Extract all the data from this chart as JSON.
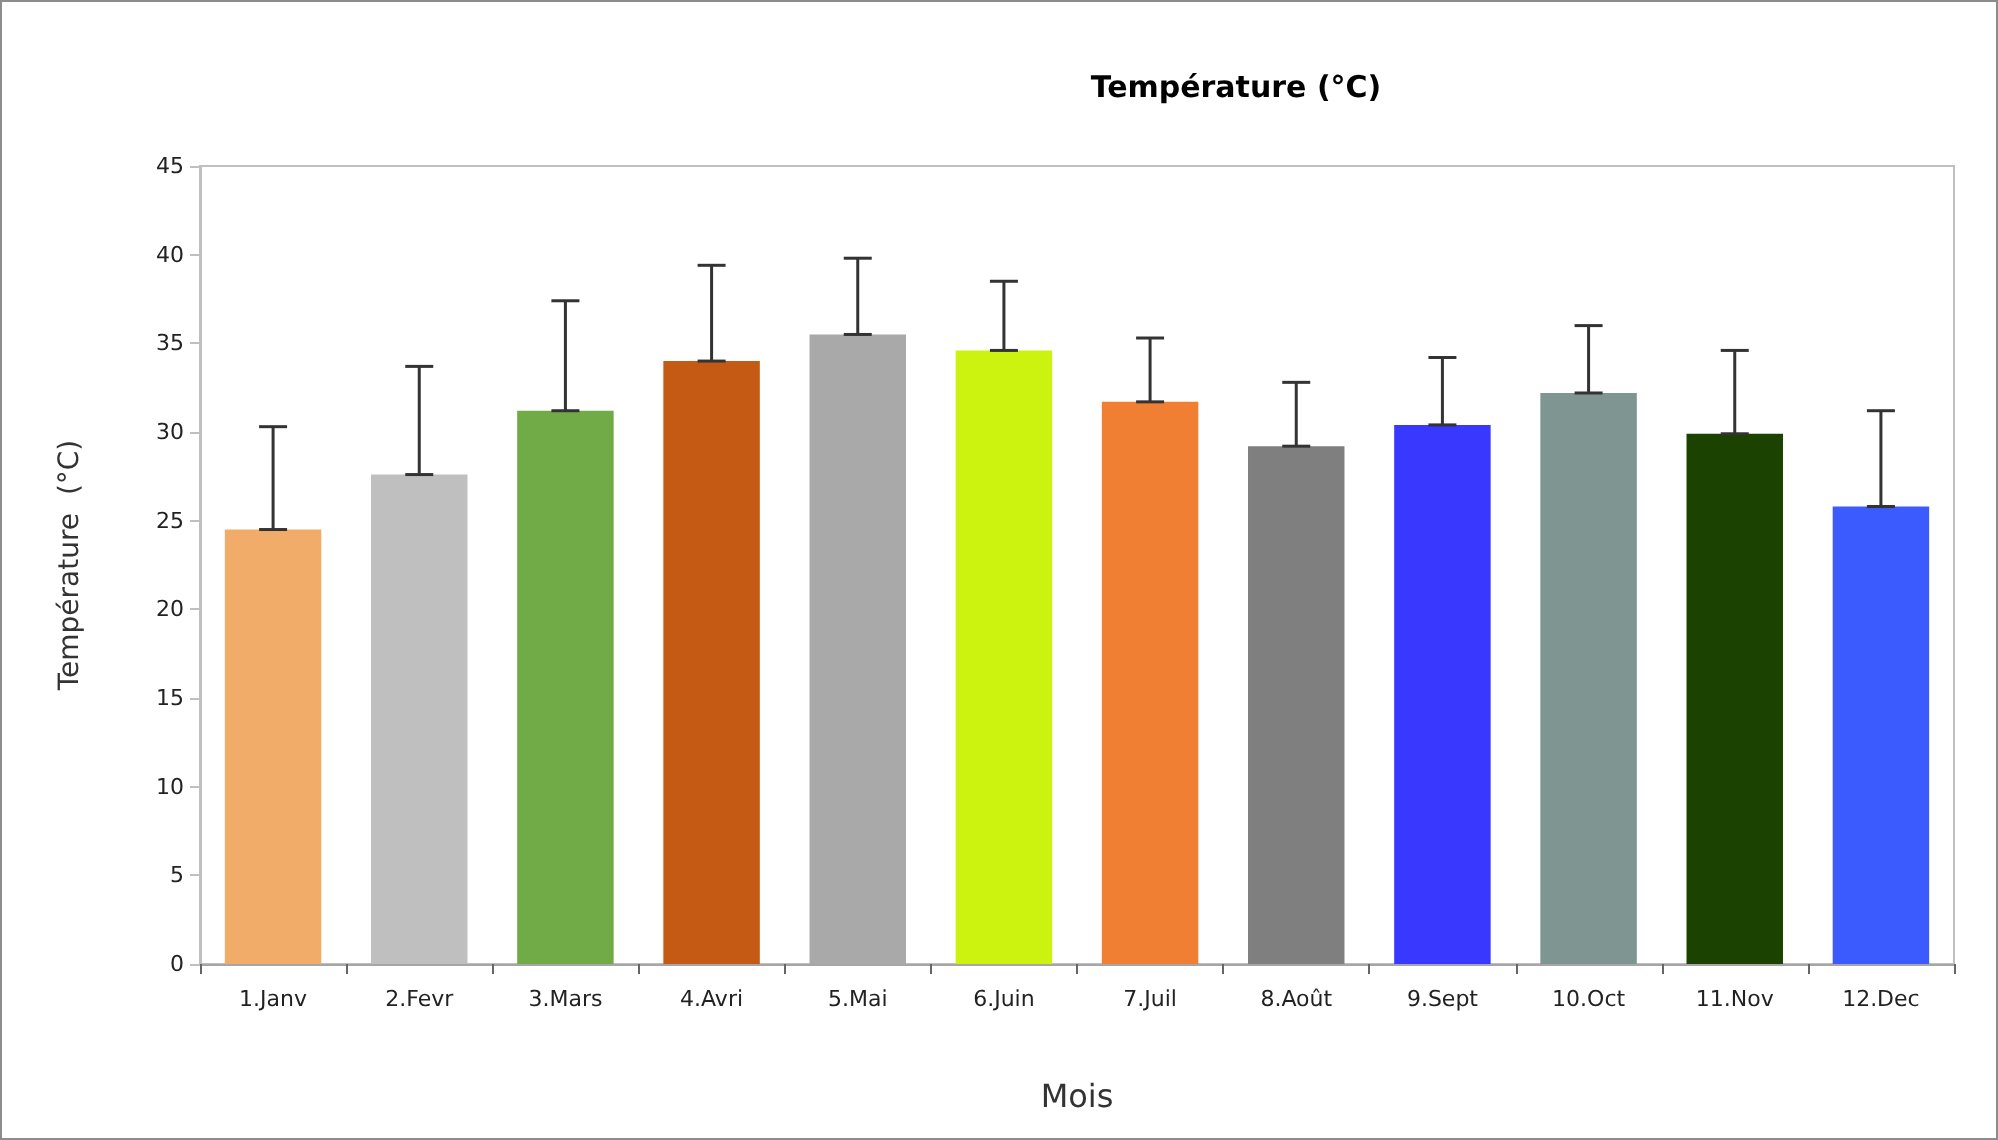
{
  "chart_data": {
    "type": "bar",
    "title": "Température (°C)",
    "xlabel": "Mois",
    "ylabel": "Température  (°C)",
    "categories": [
      "1.Janv",
      "2.Fevr",
      "3.Mars",
      "4.Avri",
      "5.Mai",
      "6.Juin",
      "7.Juil",
      "8.Août",
      "9.Sept",
      "10.Oct",
      "11.Nov",
      "12.Dec"
    ],
    "values": [
      24.5,
      27.6,
      31.2,
      34.0,
      35.5,
      34.6,
      31.7,
      29.2,
      30.4,
      32.2,
      29.9,
      25.8
    ],
    "colors": [
      "#f2ac6a",
      "#bfbfbf",
      "#70ab48",
      "#c55a14",
      "#a9a9a9",
      "#ccf20f",
      "#f07f34",
      "#7f7f7f",
      "#3838ff",
      "#7f9591",
      "#1c4200",
      "#3b5bff"
    ],
    "errors": [
      [
        24.5,
        30.3
      ],
      [
        27.6,
        33.7
      ],
      [
        31.2,
        37.4
      ],
      [
        34.0,
        39.4
      ],
      [
        35.5,
        39.8
      ],
      [
        34.6,
        38.5
      ],
      [
        31.7,
        35.3
      ],
      [
        29.2,
        32.8
      ],
      [
        30.4,
        34.2
      ],
      [
        32.2,
        36.0
      ],
      [
        29.9,
        34.6
      ],
      [
        25.8,
        31.2
      ]
    ],
    "ylim": [
      0,
      45
    ],
    "yticks": [
      0,
      5,
      10,
      15,
      20,
      25,
      30,
      35,
      40,
      45
    ],
    "grid": false
  }
}
